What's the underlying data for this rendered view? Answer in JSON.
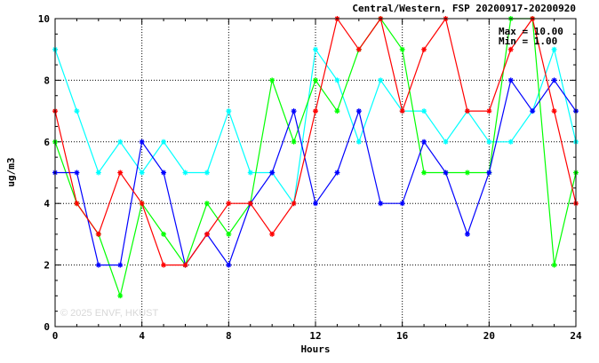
{
  "chart_data": {
    "type": "line",
    "title": "Central/Western, FSP 20200917-20200920",
    "xlabel": "Hours",
    "ylabel": "ug/m3",
    "xlim": [
      0,
      24
    ],
    "ylim": [
      0,
      10
    ],
    "xticks": [
      0,
      4,
      8,
      12,
      16,
      20,
      24
    ],
    "yticks": [
      0,
      2,
      4,
      6,
      8,
      10
    ],
    "grid": "dotted",
    "stats": {
      "max_label": "Max = 10.00",
      "min_label": "Min =  1.00"
    },
    "watermark": "© 2025  ENVF, HKUST",
    "x": [
      0,
      1,
      2,
      3,
      4,
      5,
      6,
      7,
      8,
      9,
      10,
      11,
      12,
      13,
      14,
      15,
      16,
      17,
      18,
      19,
      20,
      21,
      22,
      23,
      24
    ],
    "series": [
      {
        "color": "#00ffff",
        "values": [
          9,
          7,
          5,
          6,
          5,
          6,
          5,
          5,
          7,
          5,
          5,
          4,
          9,
          8,
          6,
          8,
          7,
          7,
          6,
          7,
          6,
          6,
          7,
          9,
          6
        ]
      },
      {
        "color": "#00ff00",
        "values": [
          6,
          4,
          3,
          1,
          4,
          3,
          2,
          4,
          3,
          4,
          8,
          6,
          8,
          7,
          9,
          10,
          9,
          5,
          5,
          5,
          5,
          10,
          10,
          2,
          5
        ]
      },
      {
        "color": "#0000ff",
        "values": [
          5,
          5,
          2,
          2,
          6,
          5,
          2,
          3,
          2,
          4,
          5,
          7,
          4,
          5,
          7,
          4,
          4,
          6,
          5,
          3,
          5,
          8,
          7,
          8,
          7
        ]
      },
      {
        "color": "#ff0000",
        "values": [
          7,
          4,
          3,
          5,
          4,
          2,
          2,
          3,
          4,
          4,
          3,
          4,
          7,
          10,
          9,
          10,
          7,
          9,
          10,
          7,
          7,
          9,
          10,
          7,
          4
        ]
      }
    ]
  }
}
